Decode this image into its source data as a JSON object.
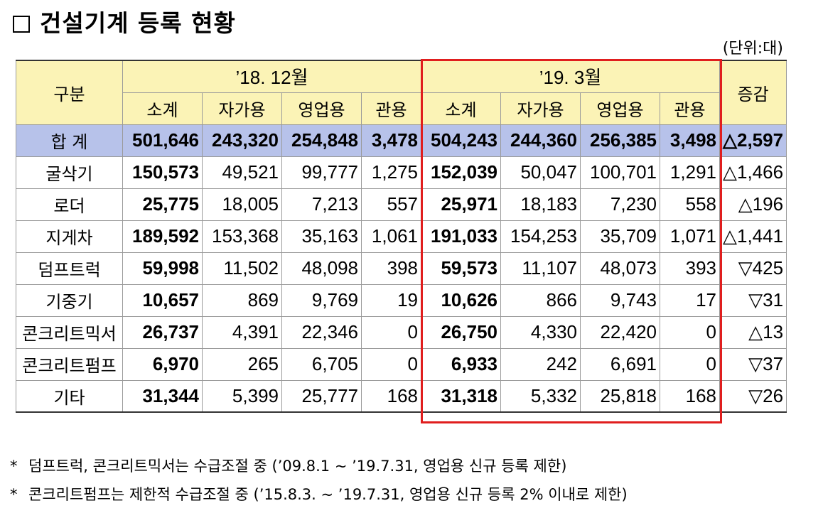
{
  "title": "건설기계 등록 현황",
  "unit": "(단위:대)",
  "table": {
    "header": {
      "category": "구분",
      "period1": "’18. 12월",
      "period2": "’19. 3월",
      "change": "증감",
      "subcols": [
        "소계",
        "자가용",
        "영업용",
        "관용",
        "소계",
        "자가용",
        "영업용",
        "관용"
      ]
    },
    "rows": [
      {
        "label": "합  계",
        "values": [
          "501,646",
          "243,320",
          "254,848",
          "3,478",
          "504,243",
          "244,360",
          "256,385",
          "3,498"
        ],
        "change": "△2,597"
      },
      {
        "label": "굴삭기",
        "values": [
          "150,573",
          "49,521",
          "99,777",
          "1,275",
          "152,039",
          "50,047",
          "100,701",
          "1,291"
        ],
        "change": "△1,466"
      },
      {
        "label": "로더",
        "values": [
          "25,775",
          "18,005",
          "7,213",
          "557",
          "25,971",
          "18,183",
          "7,230",
          "558"
        ],
        "change": "△196"
      },
      {
        "label": "지게차",
        "values": [
          "189,592",
          "153,368",
          "35,163",
          "1,061",
          "191,033",
          "154,253",
          "35,709",
          "1,071"
        ],
        "change": "△1,441"
      },
      {
        "label": "덤프트럭",
        "values": [
          "59,998",
          "11,502",
          "48,098",
          "398",
          "59,573",
          "11,107",
          "48,073",
          "393"
        ],
        "change": "▽425"
      },
      {
        "label": "기중기",
        "values": [
          "10,657",
          "869",
          "9,769",
          "19",
          "10,626",
          "866",
          "9,743",
          "17"
        ],
        "change": "▽31"
      },
      {
        "label": "콘크리트믹서",
        "values": [
          "26,737",
          "4,391",
          "22,346",
          "0",
          "26,750",
          "4,330",
          "22,420",
          "0"
        ],
        "change": "△13"
      },
      {
        "label": "콘크리트펌프",
        "values": [
          "6,970",
          "265",
          "6,705",
          "0",
          "6,933",
          "242",
          "6,691",
          "0"
        ],
        "change": "▽37"
      },
      {
        "label": "기타",
        "values": [
          "31,344",
          "5,399",
          "25,777",
          "168",
          "31,318",
          "5,332",
          "25,818",
          "168"
        ],
        "change": "▽26"
      }
    ]
  },
  "notes": [
    "덤프트럭, 콘크리트믹서는 수급조절 중 (’09.8.1 ~ ’19.7.31, 영업용 신규 등록 제한)",
    "콘크리트펌프는 제한적 수급조절 중 (’15.8.3. ~ ’19.7.31, 영업용 신규 등록 2% 이내로 제한)"
  ],
  "colors": {
    "header_bg": "#fbf3b6",
    "total_row_bg": "#b7c2ea",
    "highlight_border": "#e01e1e"
  }
}
